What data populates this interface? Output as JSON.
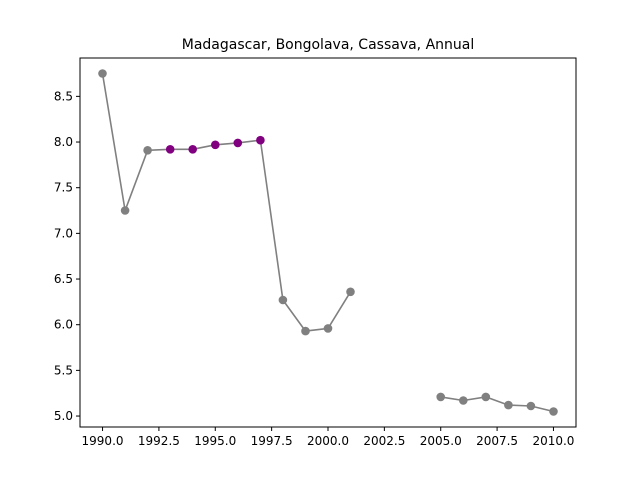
{
  "chart_data": {
    "type": "line",
    "title": "Madagascar, Bongolava, Cassava, Annual",
    "xlabel": "",
    "ylabel": "",
    "xlim": [
      1989.0,
      2011.0
    ],
    "ylim": [
      4.88,
      8.92
    ],
    "x_ticks": [
      1990.0,
      1992.5,
      1995.0,
      1997.5,
      2000.0,
      2002.5,
      2005.0,
      2007.5,
      2010.0
    ],
    "x_tick_labels": [
      "1990.0",
      "1992.5",
      "1995.0",
      "1997.5",
      "2000.0",
      "2002.5",
      "2005.0",
      "2007.5",
      "2010.0"
    ],
    "y_ticks": [
      5.0,
      5.5,
      6.0,
      6.5,
      7.0,
      7.5,
      8.0,
      8.5
    ],
    "y_tick_labels": [
      "5.0",
      "5.5",
      "6.0",
      "6.5",
      "7.0",
      "7.5",
      "8.0",
      "8.5"
    ],
    "grid": false,
    "colors": {
      "line": "#808080",
      "marker": "#808080",
      "highlight": "#800080"
    },
    "series": [
      {
        "segments": [
          [
            {
              "x": 1990,
              "y": 8.75
            },
            {
              "x": 1991,
              "y": 7.25
            },
            {
              "x": 1992,
              "y": 7.91
            },
            {
              "x": 1993,
              "y": 7.92,
              "highlight": true
            },
            {
              "x": 1994,
              "y": 7.92,
              "highlight": true
            },
            {
              "x": 1995,
              "y": 7.97,
              "highlight": true
            },
            {
              "x": 1996,
              "y": 7.99,
              "highlight": true
            },
            {
              "x": 1997,
              "y": 8.02,
              "highlight": true
            },
            {
              "x": 1998,
              "y": 6.27
            },
            {
              "x": 1999,
              "y": 5.93
            },
            {
              "x": 2000,
              "y": 5.96
            },
            {
              "x": 2001,
              "y": 6.36
            }
          ],
          [
            {
              "x": 2005,
              "y": 5.21
            },
            {
              "x": 2006,
              "y": 5.17
            },
            {
              "x": 2007,
              "y": 5.21
            },
            {
              "x": 2008,
              "y": 5.12
            },
            {
              "x": 2009,
              "y": 5.11
            },
            {
              "x": 2010,
              "y": 5.05
            }
          ]
        ]
      }
    ]
  }
}
